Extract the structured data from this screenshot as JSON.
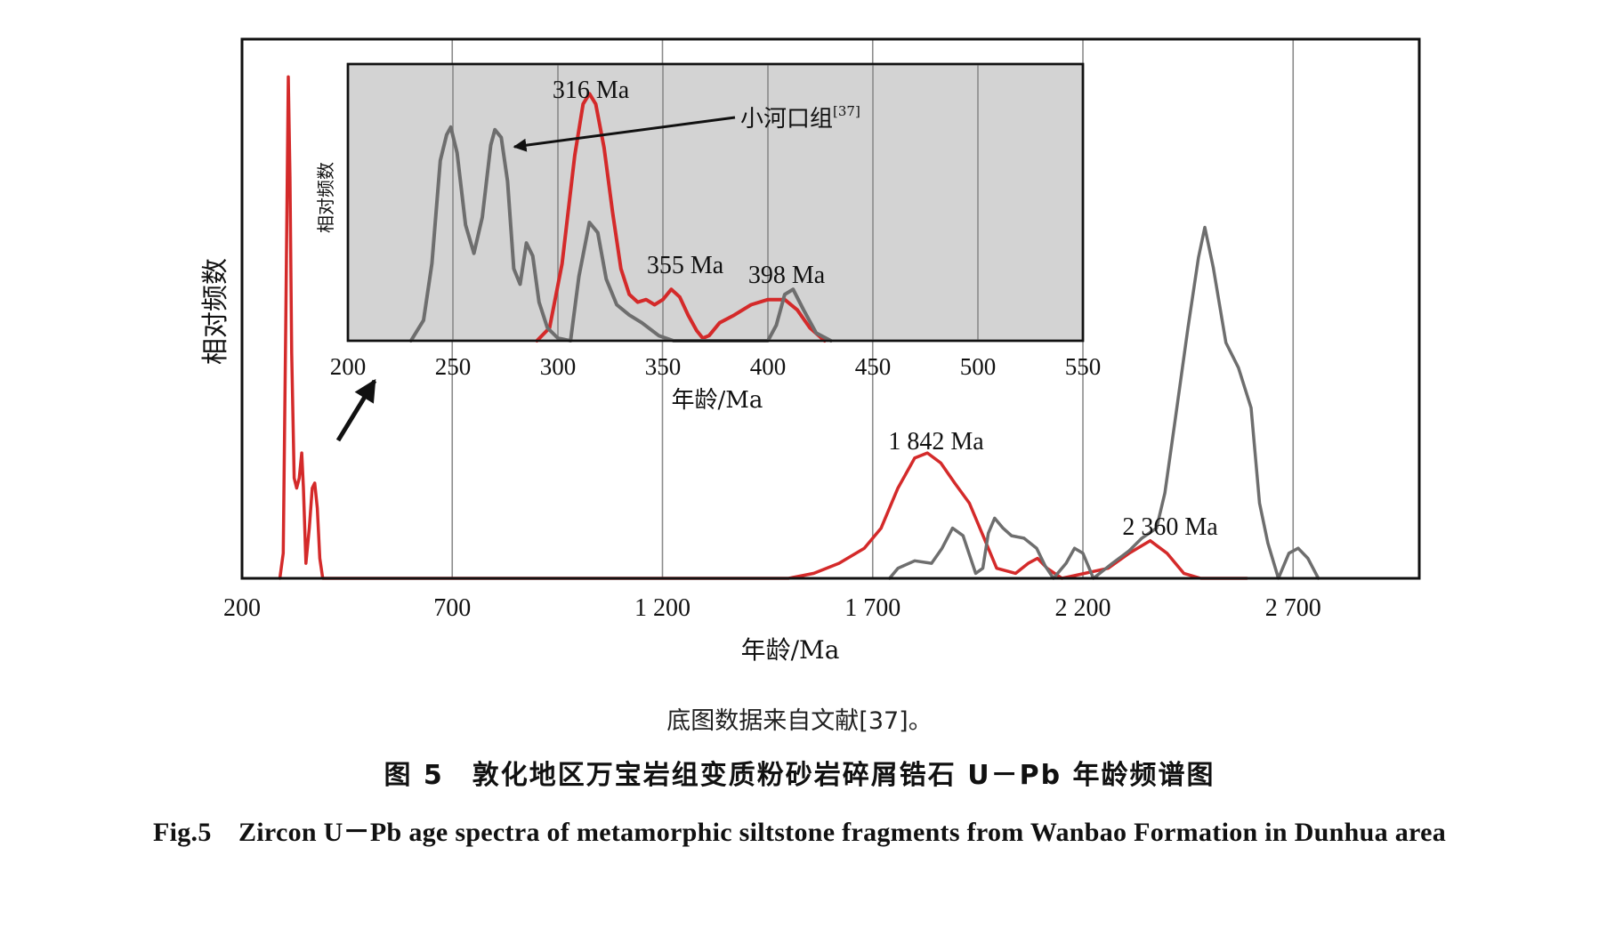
{
  "chart_data": [
    {
      "type": "line",
      "xlabel": "年龄/Ma",
      "ylabel": "相对频数",
      "xlim": [
        200,
        3000
      ],
      "x_ticks": [
        200,
        700,
        1200,
        1700,
        2200,
        2700
      ],
      "x_tick_labels": [
        "200",
        "700",
        "1 200",
        "1 700",
        "2 200",
        "2 700"
      ],
      "grid": "vertical",
      "series": [
        {
          "color": "#d42a2a",
          "points": [
            [
              290,
              0
            ],
            [
              298,
              0.05
            ],
            [
              304,
              0.5
            ],
            [
              310,
              1.0
            ],
            [
              314,
              0.8
            ],
            [
              318,
              0.45
            ],
            [
              324,
              0.2
            ],
            [
              330,
              0.18
            ],
            [
              336,
              0.2
            ],
            [
              342,
              0.25
            ],
            [
              346,
              0.18
            ],
            [
              352,
              0.03
            ],
            [
              360,
              0.1
            ],
            [
              367,
              0.18
            ],
            [
              373,
              0.19
            ],
            [
              379,
              0.14
            ],
            [
              385,
              0.04
            ],
            [
              392,
              0
            ],
            [
              1500,
              0
            ],
            [
              1560,
              0.01
            ],
            [
              1620,
              0.03
            ],
            [
              1680,
              0.06
            ],
            [
              1720,
              0.1
            ],
            [
              1760,
              0.18
            ],
            [
              1800,
              0.24
            ],
            [
              1830,
              0.25
            ],
            [
              1862,
              0.23
            ],
            [
              1895,
              0.19
            ],
            [
              1930,
              0.15
            ],
            [
              1965,
              0.08
            ],
            [
              1995,
              0.02
            ],
            [
              2040,
              0.01
            ],
            [
              2070,
              0.03
            ],
            [
              2092,
              0.04
            ],
            [
              2115,
              0.02
            ],
            [
              2150,
              0
            ],
            [
              2260,
              0.02
            ],
            [
              2310,
              0.05
            ],
            [
              2360,
              0.075
            ],
            [
              2400,
              0.05
            ],
            [
              2440,
              0.01
            ],
            [
              2480,
              0
            ],
            [
              2590,
              0
            ]
          ]
        },
        {
          "color": "#6e6e6e",
          "points": [
            [
              1740,
              0
            ],
            [
              1760,
              0.02
            ],
            [
              1800,
              0.035
            ],
            [
              1840,
              0.03
            ],
            [
              1865,
              0.06
            ],
            [
              1890,
              0.1
            ],
            [
              1915,
              0.085
            ],
            [
              1945,
              0.01
            ],
            [
              1962,
              0.02
            ],
            [
              1975,
              0.09
            ],
            [
              1990,
              0.12
            ],
            [
              2010,
              0.1
            ],
            [
              2030,
              0.085
            ],
            [
              2060,
              0.08
            ],
            [
              2090,
              0.06
            ],
            [
              2110,
              0.025
            ],
            [
              2130,
              0
            ],
            [
              2160,
              0.03
            ],
            [
              2180,
              0.06
            ],
            [
              2200,
              0.05
            ],
            [
              2225,
              0
            ],
            [
              2270,
              0.03
            ],
            [
              2310,
              0.055
            ],
            [
              2340,
              0.08
            ],
            [
              2375,
              0.1
            ],
            [
              2395,
              0.17
            ],
            [
              2420,
              0.32
            ],
            [
              2450,
              0.5
            ],
            [
              2475,
              0.64
            ],
            [
              2490,
              0.7
            ],
            [
              2510,
              0.62
            ],
            [
              2540,
              0.47
            ],
            [
              2570,
              0.42
            ],
            [
              2600,
              0.34
            ],
            [
              2620,
              0.15
            ],
            [
              2640,
              0.07
            ],
            [
              2665,
              0
            ],
            [
              2690,
              0.05
            ],
            [
              2712,
              0.06
            ],
            [
              2735,
              0.04
            ],
            [
              2760,
              0
            ]
          ]
        }
      ],
      "annotations": [
        {
          "text": "1 842 Ma",
          "x": 1842
        },
        {
          "text": "2 360 Ma",
          "x": 2360
        }
      ]
    },
    {
      "type": "line",
      "inset": true,
      "xlabel": "年龄/Ma",
      "ylabel": "相对频数",
      "xlim": [
        200,
        550
      ],
      "x_ticks": [
        200,
        250,
        300,
        350,
        400,
        450,
        500,
        550
      ],
      "x_tick_labels": [
        "200",
        "250",
        "300",
        "350",
        "400",
        "450",
        "500",
        "550"
      ],
      "grid": "vertical",
      "series": [
        {
          "color": "#d42a2a",
          "points": [
            [
              290,
              0
            ],
            [
              296,
              0.05
            ],
            [
              302,
              0.3
            ],
            [
              308,
              0.72
            ],
            [
              312,
              0.92
            ],
            [
              315,
              0.96
            ],
            [
              318,
              0.92
            ],
            [
              322,
              0.75
            ],
            [
              326,
              0.5
            ],
            [
              330,
              0.28
            ],
            [
              334,
              0.18
            ],
            [
              338,
              0.15
            ],
            [
              342,
              0.16
            ],
            [
              346,
              0.14
            ],
            [
              350,
              0.16
            ],
            [
              354,
              0.2
            ],
            [
              358,
              0.17
            ],
            [
              362,
              0.1
            ],
            [
              366,
              0.04
            ],
            [
              369,
              0.01
            ],
            [
              372,
              0.02
            ],
            [
              377,
              0.07
            ],
            [
              384,
              0.1
            ],
            [
              392,
              0.14
            ],
            [
              400,
              0.16
            ],
            [
              408,
              0.16
            ],
            [
              414,
              0.12
            ],
            [
              420,
              0.05
            ],
            [
              427,
              0
            ]
          ]
        },
        {
          "color": "#6e6e6e",
          "points": [
            [
              230,
              0
            ],
            [
              236,
              0.08
            ],
            [
              240,
              0.3
            ],
            [
              244,
              0.7
            ],
            [
              247,
              0.8
            ],
            [
              249,
              0.83
            ],
            [
              252,
              0.73
            ],
            [
              256,
              0.45
            ],
            [
              260,
              0.34
            ],
            [
              264,
              0.48
            ],
            [
              268,
              0.76
            ],
            [
              270,
              0.82
            ],
            [
              273,
              0.79
            ],
            [
              276,
              0.62
            ],
            [
              279,
              0.28
            ],
            [
              282,
              0.22
            ],
            [
              285,
              0.38
            ],
            [
              288,
              0.33
            ],
            [
              291,
              0.15
            ],
            [
              295,
              0.05
            ],
            [
              300,
              0.01
            ],
            [
              306,
              0
            ],
            [
              310,
              0.25
            ],
            [
              315,
              0.46
            ],
            [
              319,
              0.42
            ],
            [
              323,
              0.24
            ],
            [
              328,
              0.14
            ],
            [
              334,
              0.1
            ],
            [
              340,
              0.07
            ],
            [
              348,
              0.02
            ],
            [
              355,
              0
            ],
            [
              400,
              0
            ],
            [
              404,
              0.06
            ],
            [
              408,
              0.18
            ],
            [
              412,
              0.2
            ],
            [
              417,
              0.12
            ],
            [
              423,
              0.03
            ],
            [
              430,
              0
            ]
          ]
        }
      ],
      "annotations": [
        {
          "text": "316 Ma",
          "x": 316
        },
        {
          "text": "355 Ma",
          "x": 355
        },
        {
          "text": "398 Ma",
          "x": 398
        },
        {
          "text": "小河口组",
          "sup": "[37]"
        }
      ]
    }
  ],
  "source_note": "底图数据来自文献[37]。",
  "caption_cn": "图 5　敦化地区万宝岩组变质粉砂岩碎屑锆石 U－Pb 年龄频谱图",
  "caption_en": "Fig.5　Zircon U－Pb age spectra of metamorphic siltstone fragments from Wanbao Formation in Dunhua area",
  "colors": {
    "young_series": "#d42a2a",
    "reference_series": "#6e6e6e",
    "inset_background": "#d3d3d3"
  }
}
